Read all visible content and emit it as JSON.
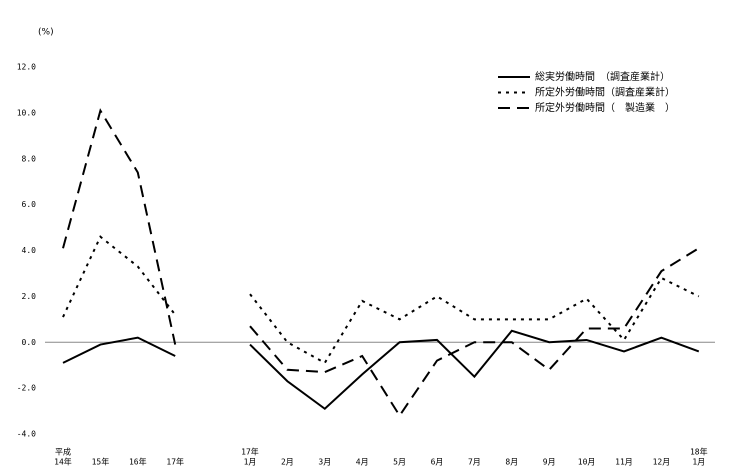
{
  "chart_data": {
    "type": "line",
    "y_label": "(%)",
    "categories": [
      [
        "平成",
        "14年"
      ],
      [
        "15年"
      ],
      [
        "16年"
      ],
      [
        "17年"
      ],
      null,
      [
        "17年",
        "1月"
      ],
      [
        "2月"
      ],
      [
        "3月"
      ],
      [
        "4月"
      ],
      [
        "5月"
      ],
      [
        "6月"
      ],
      [
        "7月"
      ],
      [
        "8月"
      ],
      [
        "9月"
      ],
      [
        "10月"
      ],
      [
        "11月"
      ],
      [
        "12月"
      ],
      [
        "18年",
        "1月"
      ]
    ],
    "series": [
      {
        "name": "総実労働時間　（調査産業計）",
        "color": "#000000",
        "dash": "solid",
        "values": [
          -0.9,
          -0.1,
          0.2,
          -0.6,
          null,
          -0.1,
          -1.7,
          -2.9,
          -1.4,
          0.0,
          0.1,
          -1.5,
          0.5,
          0.0,
          0.1,
          -0.4,
          0.2,
          -0.4
        ]
      },
      {
        "name": "所定外労働時間（調査産業計）",
        "color": "#000000",
        "dash": "dotted",
        "values": [
          1.1,
          4.6,
          3.3,
          1.2,
          null,
          2.1,
          0.0,
          -0.9,
          1.8,
          1.0,
          2.0,
          1.0,
          1.0,
          1.0,
          1.9,
          0.1,
          2.8,
          2.0
        ]
      },
      {
        "name": "所定外労働時間（　製造業　）",
        "color": "#000000",
        "dash": "dashed",
        "values": [
          4.1,
          10.1,
          7.4,
          -0.1,
          null,
          0.7,
          -1.2,
          -1.3,
          -0.6,
          -3.2,
          -0.8,
          0.0,
          0.0,
          -1.2,
          0.6,
          0.6,
          3.1,
          4.1
        ]
      }
    ],
    "ylim": [
      -4,
      12
    ],
    "yticks": [
      {
        "value": -4,
        "label": "-4.0"
      },
      {
        "value": -2,
        "label": "-2.0"
      },
      {
        "value": 0,
        "label": "0.0"
      },
      {
        "value": 2,
        "label": "2.0"
      },
      {
        "value": 4,
        "label": "4.0"
      },
      {
        "value": 6,
        "label": "6.0"
      },
      {
        "value": 8,
        "label": "8.0"
      },
      {
        "value": 10,
        "label": "10.0"
      },
      {
        "value": 12,
        "label": "12.0"
      }
    ],
    "zero_line": true,
    "legend": "top-right"
  }
}
